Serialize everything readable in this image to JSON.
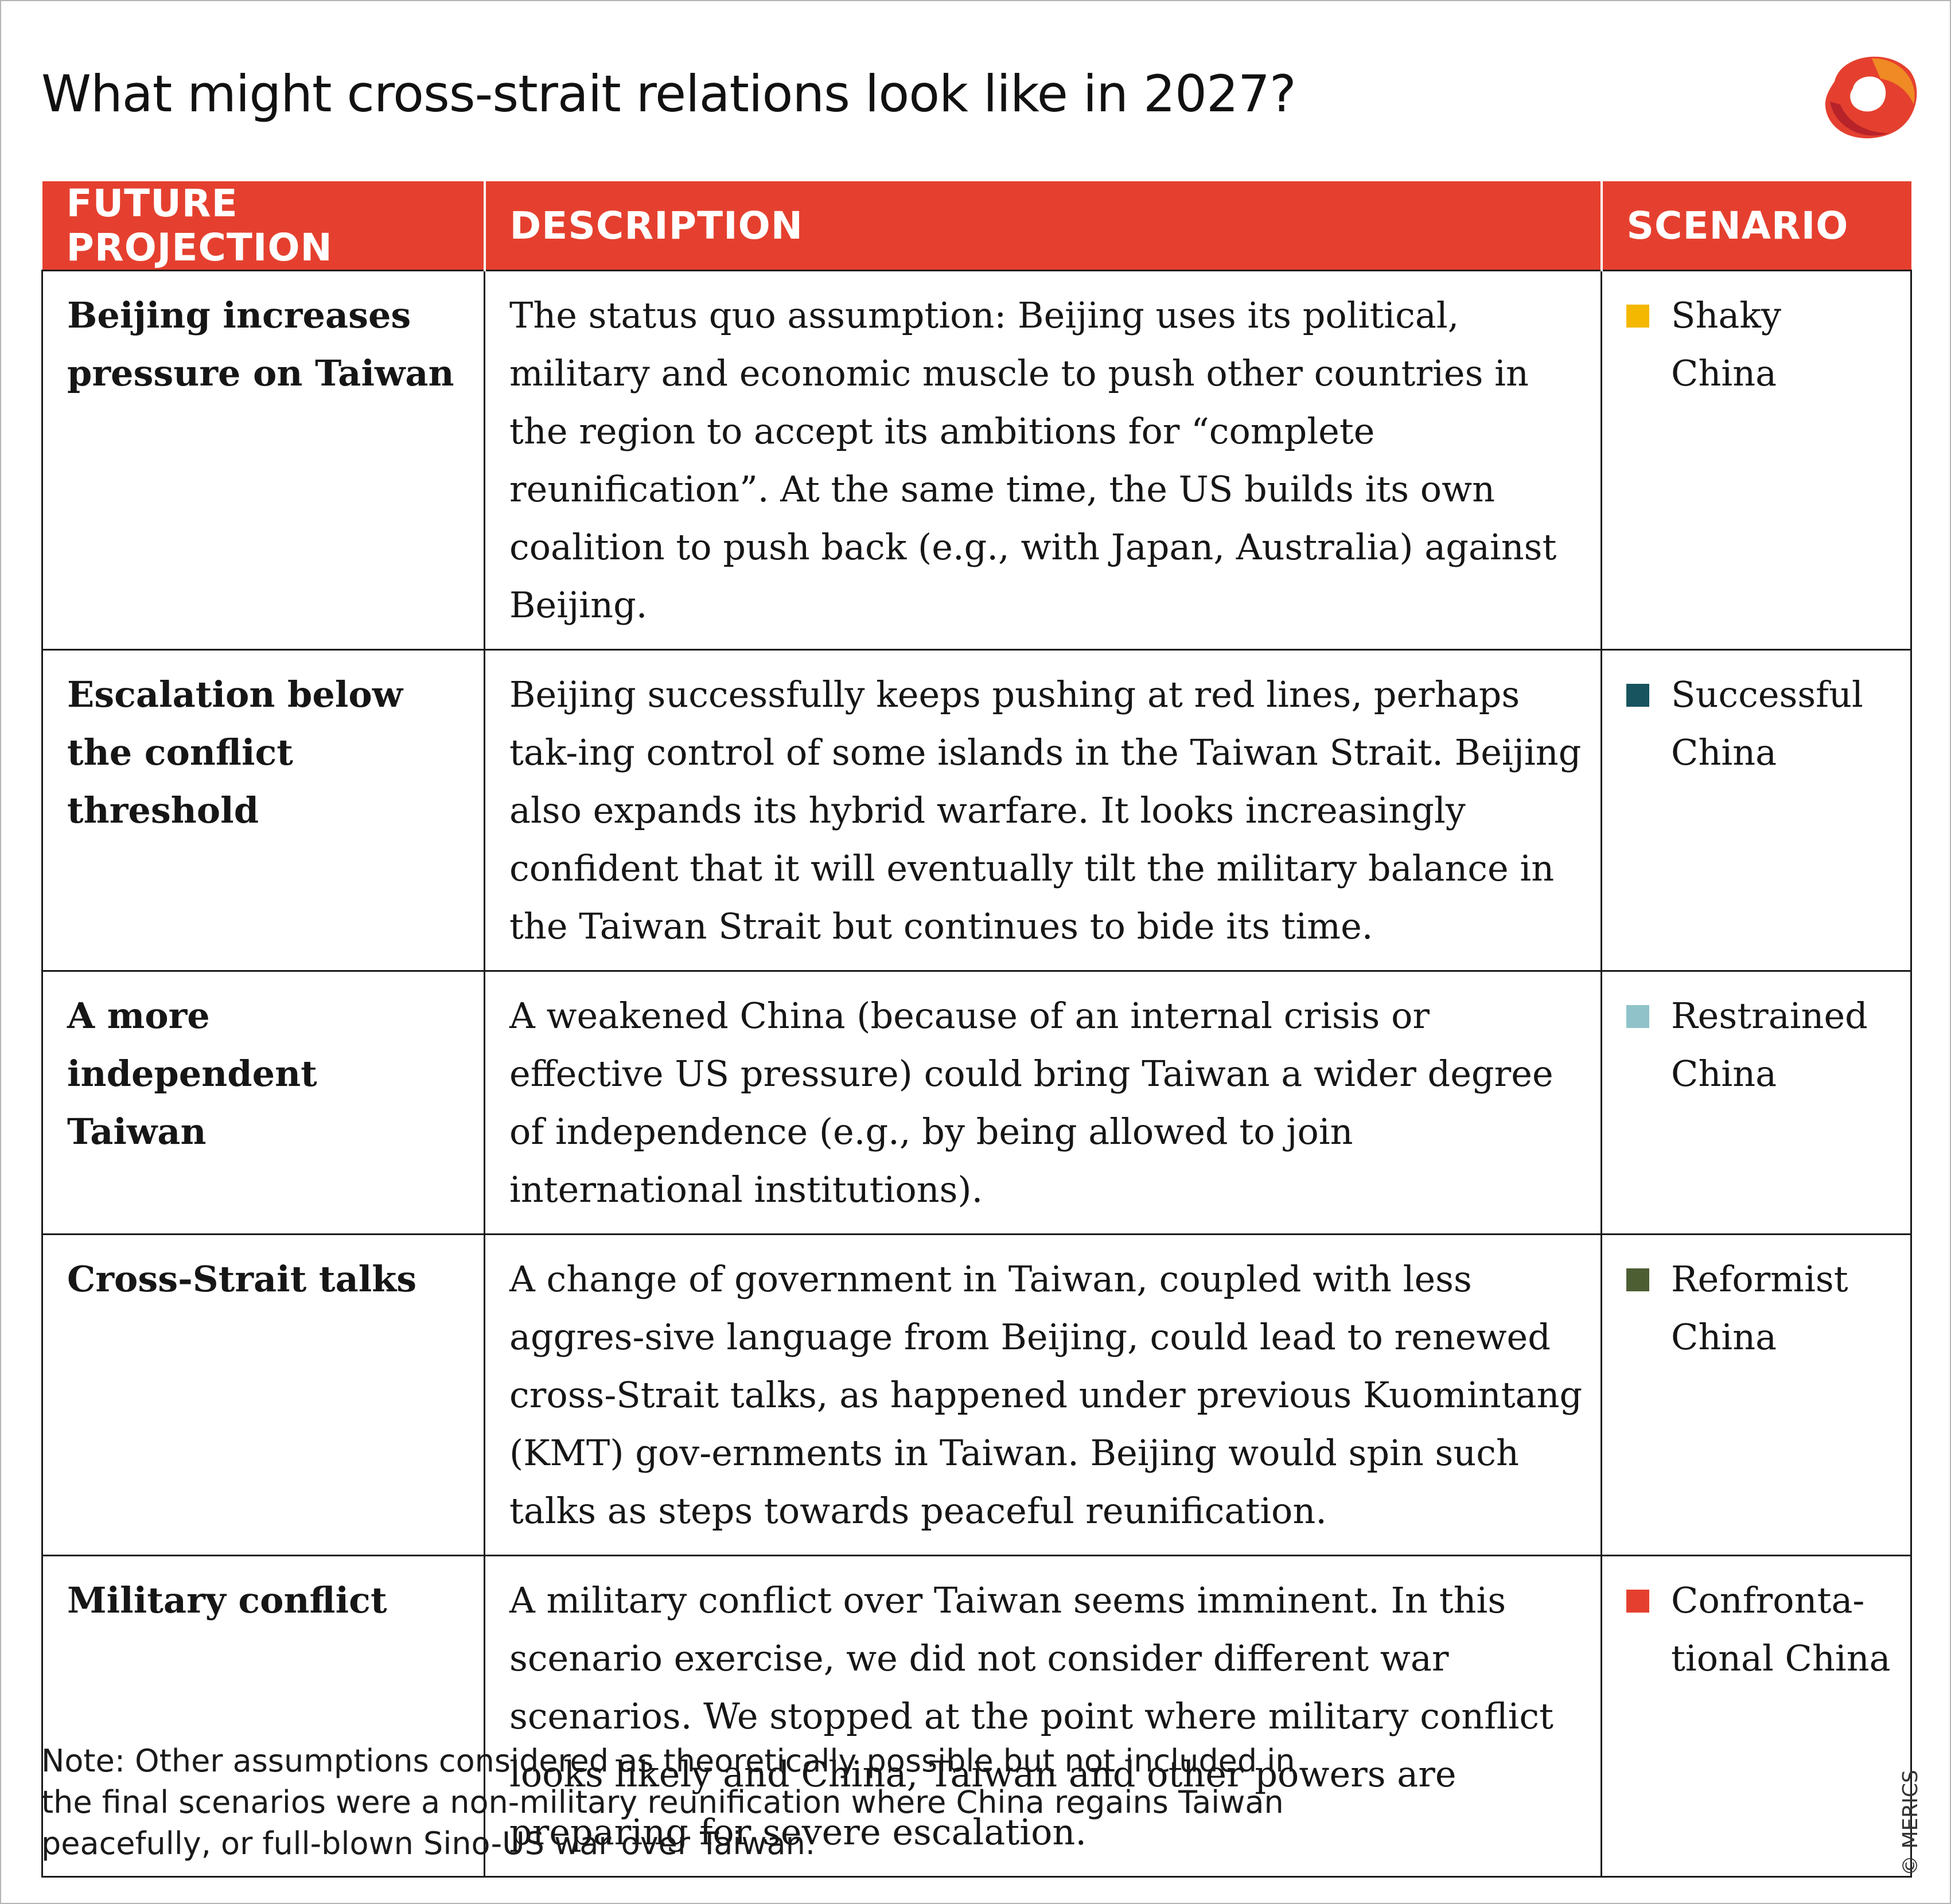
{
  "title": "What might cross-strait relations look like in 2027?",
  "logo_icon": "merics-logo-icon",
  "table": {
    "headers": [
      "FUTURE PROJECTION",
      "DESCRIPTION",
      "SCENARIO"
    ],
    "rows": [
      {
        "projection": "Beijing increases pressure on Taiwan",
        "description": "The status quo assumption: Beijing uses its political, military and economic muscle to push other countries in the region to accept its ambitions for “complete reunification”. At the same time, the US builds its own coalition to push back (e.g., with Japan, Australia) against Beijing.",
        "scenario": "Shaky China",
        "color": "#f5b800"
      },
      {
        "projection": "Escalation below the conflict threshold",
        "description": "Beijing successfully keeps pushing at red lines, perhaps tak-ing control of some islands in the Taiwan Strait. Beijing also expands its hybrid warfare. It looks increasingly confident that it will eventually tilt the military balance in the Taiwan Strait but continues to bide its time.",
        "scenario": "Successful China",
        "color": "#17545f"
      },
      {
        "projection": "A more independent Taiwan",
        "description": "A weakened China (because of an internal crisis or effective US pressure) could bring Taiwan a wider degree of independence (e.g., by being allowed to join international institutions).",
        "scenario": "Restrained China",
        "color": "#8fc3c9"
      },
      {
        "projection": "Cross-Strait talks",
        "description": "A change of government in Taiwan, coupled with less aggres-sive language from Beijing, could lead to renewed cross-Strait talks, as happened under previous Kuomintang (KMT) gov-ernments in Taiwan. Beijing would spin such talks as steps towards peaceful reunification.",
        "scenario": "Reformist China",
        "color": "#4d5e33"
      },
      {
        "projection": "Military conflict",
        "description": "A military conflict over Taiwan seems imminent. In this scenario exercise, we did not consider different war scenarios. We stopped at the point where military conflict looks likely and China, Taiwan and other powers are preparing for severe escalation.",
        "scenario": "Confronta-tional China",
        "color": "#e5402f"
      }
    ]
  },
  "note": "Note: Other assumptions considered as theoretically possible but not included in the final scenarios were a non-military reunification where China regains Taiwan peacefully, or full-blown Sino-US war over Taiwan.",
  "credit": "© MERICS",
  "colors": {
    "header_bg": "#e5402f",
    "border": "#1a1a1a"
  }
}
